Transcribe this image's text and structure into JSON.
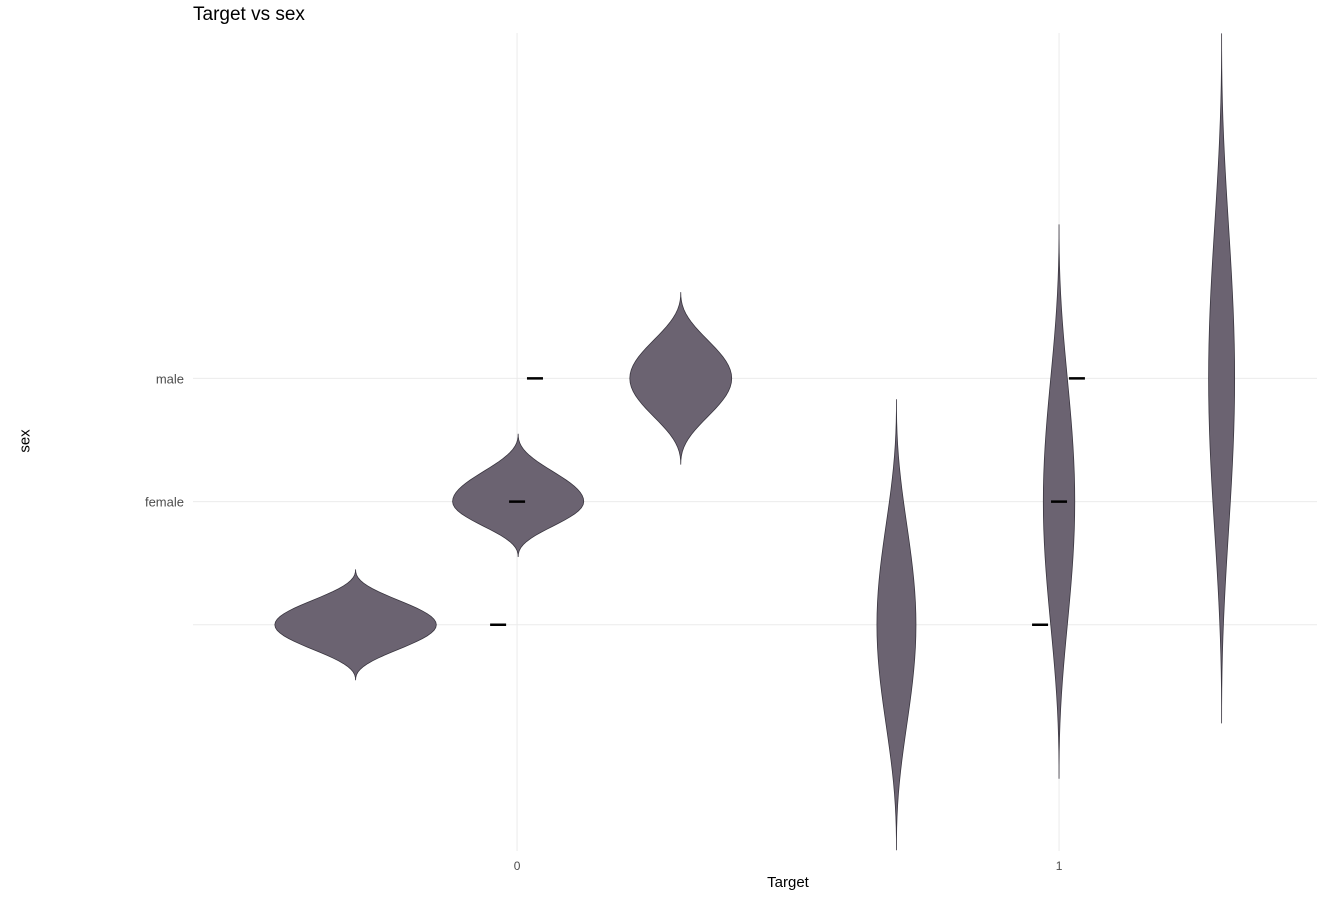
{
  "chart_data": {
    "type": "violin",
    "title": "Target vs sex",
    "xlabel": "Target",
    "ylabel": "sex",
    "x_ticks": [
      {
        "value": 0,
        "label": "0"
      },
      {
        "value": 1,
        "label": "1"
      }
    ],
    "y_ticks": [
      {
        "value": 0,
        "label": ""
      },
      {
        "value": 1,
        "label": "female"
      },
      {
        "value": 2,
        "label": "male"
      }
    ],
    "xlim": [
      -0.598,
      1.476
    ],
    "ylim": [
      -1.836,
      4.803
    ],
    "grid": true,
    "legend": "none",
    "violin_color": "#6b6371",
    "violins": [
      {
        "center_x": -0.298,
        "center_y": 0.0,
        "y_min": -0.45,
        "y_max": 0.45,
        "max_half_width": 0.149
      },
      {
        "center_x": 0.002,
        "center_y": 1.0,
        "y_min": 0.55,
        "y_max": 1.55,
        "max_half_width": 0.121
      },
      {
        "center_x": 0.302,
        "center_y": 2.0,
        "y_min": 1.3,
        "y_max": 2.7,
        "max_half_width": 0.094
      },
      {
        "center_x": 0.7,
        "center_y": 0.0,
        "y_min": -1.83,
        "y_max": 1.83,
        "max_half_width": 0.036
      },
      {
        "center_x": 1.0,
        "center_y": 1.0,
        "y_min": -1.25,
        "y_max": 3.25,
        "max_half_width": 0.029
      },
      {
        "center_x": 1.3,
        "center_y": 2.0,
        "y_min": -0.8,
        "y_max": 4.8,
        "max_half_width": 0.024
      }
    ],
    "medians": [
      {
        "x": -0.035,
        "y": 0.0
      },
      {
        "x": 0.0,
        "y": 1.0
      },
      {
        "x": 0.033,
        "y": 2.0
      },
      {
        "x": 0.965,
        "y": 0.0
      },
      {
        "x": 1.0,
        "y": 1.0
      },
      {
        "x": 1.033,
        "y": 2.0
      }
    ]
  }
}
